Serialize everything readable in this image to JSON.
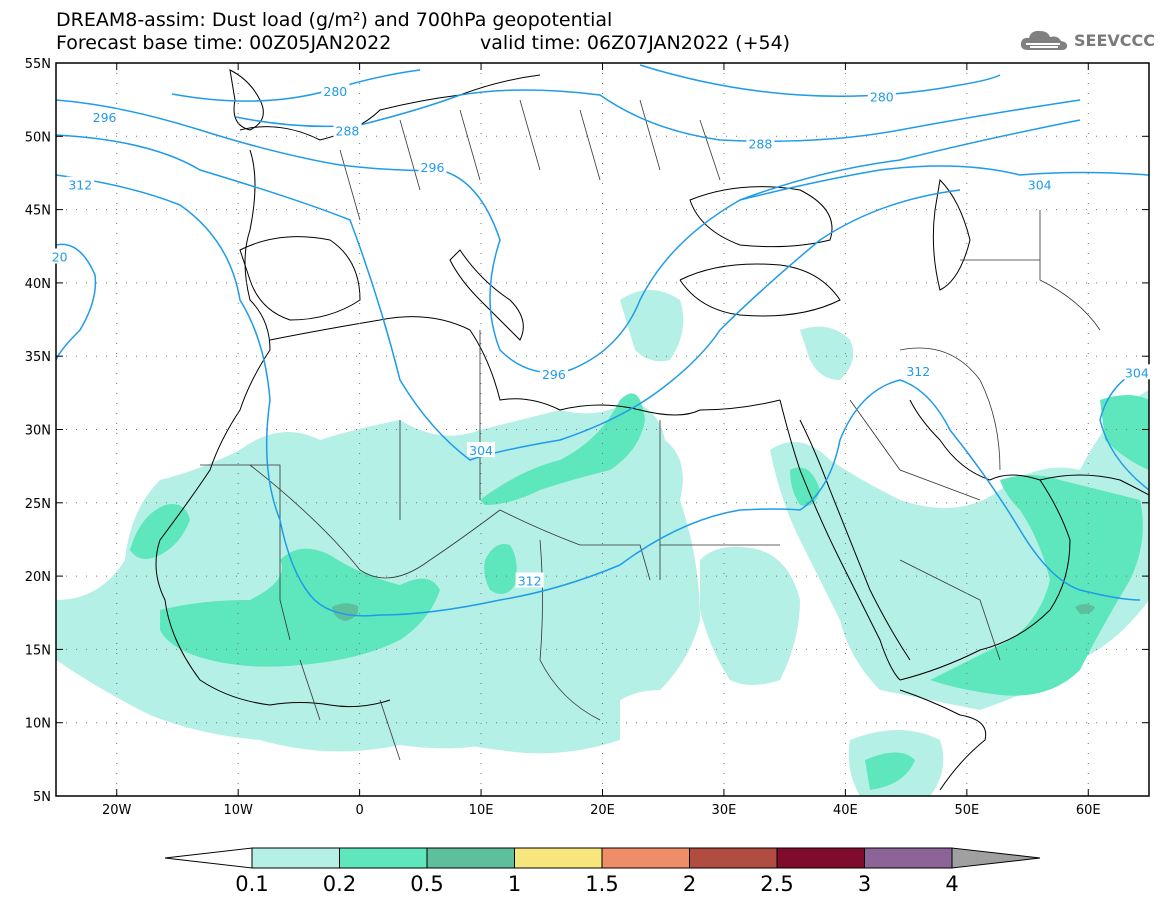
{
  "title": {
    "line1": "DREAM8-assim: Dust load (g/m²) and 700hPa geopotential",
    "line2_base": "Forecast base time: 00Z05JAN2022",
    "line2_valid": "valid time: 06Z07JAN2022 (+54)"
  },
  "logo": {
    "text": "SEEVCCC",
    "icon": "cloud-icon"
  },
  "map": {
    "lon_range": [
      -25,
      65
    ],
    "lat_range": [
      5,
      55
    ],
    "x_ticks": [
      {
        "lon": -20,
        "label": "20W"
      },
      {
        "lon": -10,
        "label": "10W"
      },
      {
        "lon": 0,
        "label": "0"
      },
      {
        "lon": 10,
        "label": "10E"
      },
      {
        "lon": 20,
        "label": "20E"
      },
      {
        "lon": 30,
        "label": "30E"
      },
      {
        "lon": 40,
        "label": "40E"
      },
      {
        "lon": 50,
        "label": "50E"
      },
      {
        "lon": 60,
        "label": "60E"
      }
    ],
    "y_ticks": [
      {
        "lat": 55,
        "label": "55N"
      },
      {
        "lat": 50,
        "label": "50N"
      },
      {
        "lat": 45,
        "label": "45N"
      },
      {
        "lat": 40,
        "label": "40N"
      },
      {
        "lat": 35,
        "label": "35N"
      },
      {
        "lat": 30,
        "label": "30N"
      },
      {
        "lat": 25,
        "label": "25N"
      },
      {
        "lat": 20,
        "label": "20N"
      },
      {
        "lat": 15,
        "label": "15N"
      },
      {
        "lat": 10,
        "label": "10N"
      },
      {
        "lat": 5,
        "label": "5N"
      }
    ],
    "contour_color": "#1f9bea",
    "contour_labels": [
      {
        "text": "280",
        "lon": -2,
        "lat": 53.1
      },
      {
        "text": "280",
        "lon": 43,
        "lat": 52.7
      },
      {
        "text": "288",
        "lon": -1,
        "lat": 50.4
      },
      {
        "text": "288",
        "lon": 33,
        "lat": 49.5
      },
      {
        "text": "296",
        "lon": -21,
        "lat": 51.3
      },
      {
        "text": "296",
        "lon": 6,
        "lat": 47.9
      },
      {
        "text": "296",
        "lon": 16,
        "lat": 33.8
      },
      {
        "text": "304",
        "lon": 56,
        "lat": 46.7
      },
      {
        "text": "304",
        "lon": 10,
        "lat": 28.6
      },
      {
        "text": "304",
        "lon": 64,
        "lat": 33.9
      },
      {
        "text": "312",
        "lon": -23,
        "lat": 46.7
      },
      {
        "text": "312",
        "lon": 14,
        "lat": 19.7
      },
      {
        "text": "312",
        "lon": 46,
        "lat": 34.0
      },
      {
        "text": "20",
        "lon": -24.7,
        "lat": 41.8
      }
    ]
  },
  "colorbar": {
    "labels": [
      "0.1",
      "0.2",
      "0.5",
      "1",
      "1.5",
      "2",
      "2.5",
      "3",
      "4"
    ],
    "colors": [
      "#b4f0e6",
      "#5ee6bc",
      "#5ebf9c",
      "#f6e67c",
      "#ee8e68",
      "#b04c40",
      "#800c2c",
      "#8c6498"
    ],
    "under_color": "#ffffff",
    "over_color": "#a0a0a0"
  }
}
